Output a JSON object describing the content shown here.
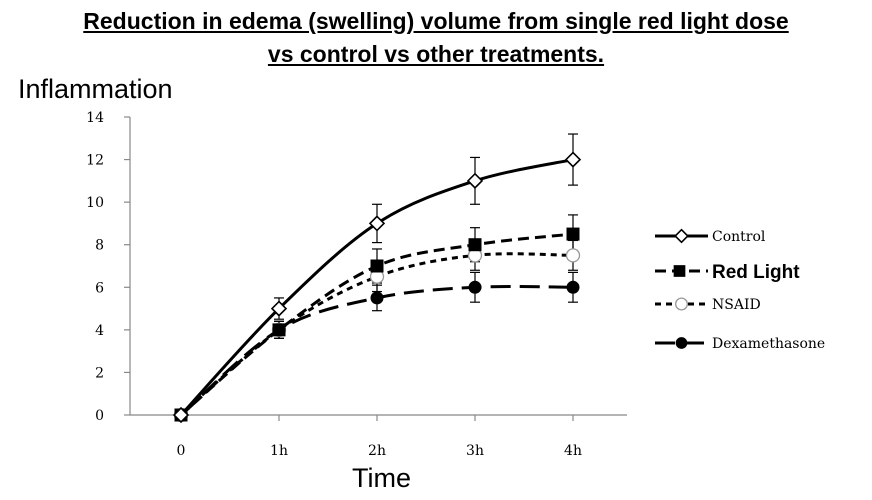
{
  "title_line1": "Reduction in edema (swelling) volume from single red light dose",
  "title_line2": "vs control vs other treatments.",
  "chart_data": {
    "type": "line",
    "xlabel": "Time",
    "ylabel": "Inflammation",
    "categories": [
      "0",
      "1h",
      "2h",
      "3h",
      "4h"
    ],
    "ylim": [
      0,
      14
    ],
    "yticks": [
      "0",
      "2",
      "4",
      "6",
      "8",
      "10",
      "12",
      "14"
    ],
    "grid": false,
    "legend_position": "right",
    "series": [
      {
        "name": "Control",
        "values": [
          0,
          5,
          9,
          11,
          12
        ],
        "errors": [
          0,
          0.5,
          0.9,
          1.1,
          1.2
        ],
        "line": "solid",
        "marker": "diamond-open",
        "color": "#000000",
        "bold_label": false
      },
      {
        "name": "Red Light",
        "values": [
          0,
          4,
          7,
          8,
          8.5
        ],
        "errors": [
          0,
          0.4,
          0.8,
          0.8,
          0.9
        ],
        "line": "dashed",
        "marker": "square-filled",
        "color": "#000000",
        "bold_label": true
      },
      {
        "name": "NSAID",
        "values": [
          0,
          4,
          6.5,
          7.5,
          7.5
        ],
        "errors": [
          0,
          0.4,
          0.7,
          0.7,
          0.7
        ],
        "line": "short-dashed",
        "marker": "circle-open",
        "color": "#000000",
        "bold_label": false
      },
      {
        "name": "Dexamethasone",
        "values": [
          0,
          4,
          5.5,
          6,
          6
        ],
        "errors": [
          0,
          0.4,
          0.6,
          0.7,
          0.7
        ],
        "line": "long-dashed",
        "marker": "circle-filled",
        "color": "#000000",
        "bold_label": false
      }
    ]
  }
}
